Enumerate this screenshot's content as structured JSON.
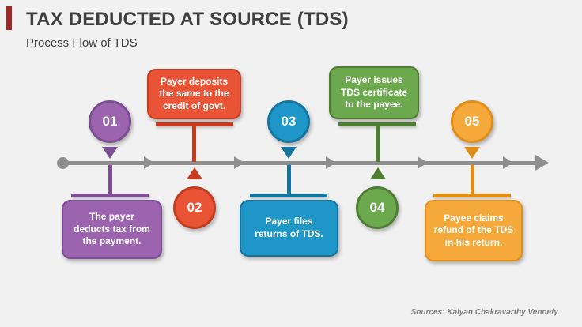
{
  "slide": {
    "title": "TAX DEDUCTED AT SOURCE (TDS)",
    "subtitle": "Process Flow of TDS",
    "source_credit": "Sources: Kalyan Chakravarthy Vennety",
    "accent_color": "#9E2A26",
    "background_color": "#F1F1F2",
    "title_color": "#3F3F3F"
  },
  "timeline": {
    "line_color": "#8F8F8F",
    "direction": "left-to-right"
  },
  "steps": [
    {
      "number": "01",
      "description": "The payer deducts tax from the payment.",
      "fill": "#9C64AE",
      "dark": "#7C4E94",
      "placement": "circle-above-line"
    },
    {
      "number": "02",
      "description": "Payer deposits the same to the credit of govt.",
      "fill": "#EA5436",
      "dark": "#C63A1E",
      "placement": "circle-below-line"
    },
    {
      "number": "03",
      "description": "Payer files returns of TDS.",
      "fill": "#1E96C8",
      "dark": "#15759E",
      "placement": "circle-above-line"
    },
    {
      "number": "04",
      "description": "Payer issues TDS certificate to the payee.",
      "fill": "#6CA84D",
      "dark": "#4D7E31",
      "placement": "circle-below-line"
    },
    {
      "number": "05",
      "description": "Payee claims refund of the TDS in his return.",
      "fill": "#F6A93B",
      "dark": "#E18E17",
      "placement": "circle-above-line"
    }
  ]
}
